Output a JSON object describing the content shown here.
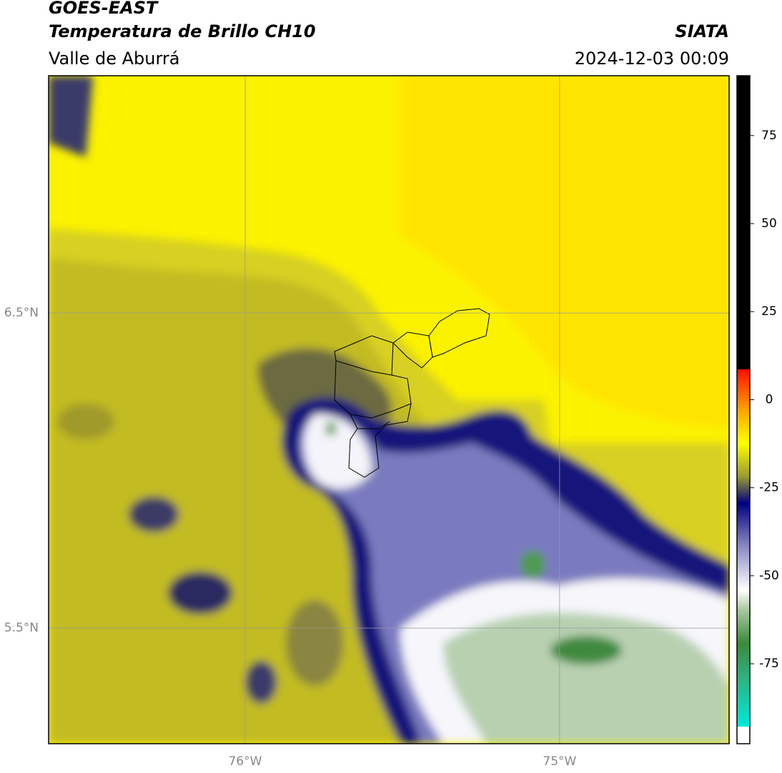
{
  "header": {
    "title": "GOES-EAST",
    "subtitle": "Temperatura de Brillo CH10",
    "region": "Valle de Aburrá",
    "source": "SIATA",
    "datetime": "2024-12-03 00:09"
  },
  "map": {
    "lonlim": [
      -76.625,
      -74.461
    ],
    "latlim": [
      5.133,
      7.253
    ],
    "lon_ticks": [
      {
        "value": -76,
        "label": "76°W"
      },
      {
        "value": -75,
        "label": "75°W"
      }
    ],
    "lat_ticks": [
      {
        "value": 6.5,
        "label": "6.5°N"
      },
      {
        "value": 5.5,
        "label": "5.5°N"
      }
    ]
  },
  "colorbar": {
    "lim": [
      -97.7,
      92
    ],
    "ticks": [
      75,
      50,
      25,
      0,
      -25,
      -50,
      -75
    ]
  }
}
